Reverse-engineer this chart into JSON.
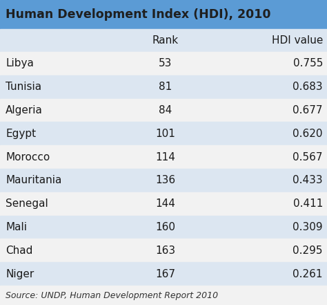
{
  "title": "Human Development Index (HDI), 2010",
  "col_headers": [
    "",
    "Rank",
    "HDI value"
  ],
  "rows": [
    [
      "Libya",
      "53",
      "0.755"
    ],
    [
      "Tunisia",
      "81",
      "0.683"
    ],
    [
      "Algeria",
      "84",
      "0.677"
    ],
    [
      "Egypt",
      "101",
      "0.620"
    ],
    [
      "Morocco",
      "114",
      "0.567"
    ],
    [
      "Mauritania",
      "136",
      "0.433"
    ],
    [
      "Senegal",
      "144",
      "0.411"
    ],
    [
      "Mali",
      "160",
      "0.309"
    ],
    [
      "Chad",
      "163",
      "0.295"
    ],
    [
      "Niger",
      "167",
      "0.261"
    ]
  ],
  "source": "Source: UNDP, Human Development Report 2010",
  "title_bg_color": "#5b9bd5",
  "header_bg_color": "#dce6f1",
  "row_bg_white": "#f2f2f2",
  "row_bg_blue": "#dce6f1",
  "title_text_color": "#1f1f1f",
  "body_text_color": "#1a1a1a",
  "source_text_color": "#333333",
  "title_fontsize": 12.5,
  "header_fontsize": 11,
  "body_fontsize": 11,
  "source_fontsize": 9,
  "fig_width": 4.74,
  "fig_height": 4.41,
  "dpi": 100
}
